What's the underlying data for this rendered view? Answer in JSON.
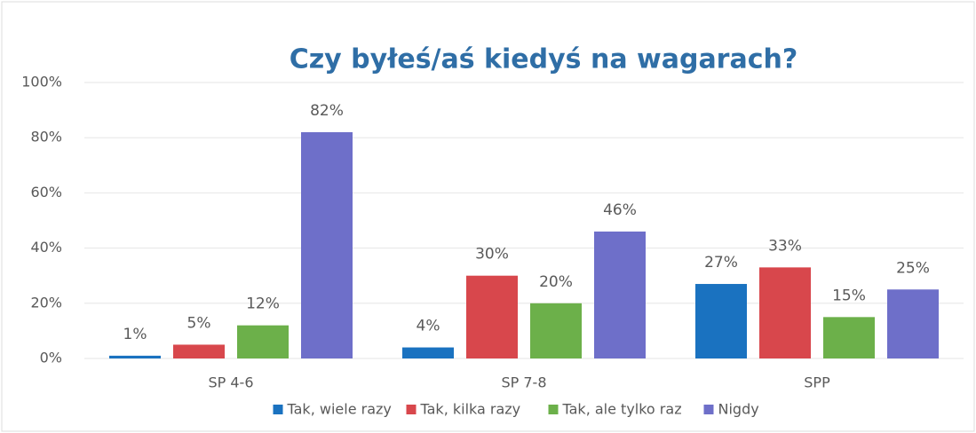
{
  "chart_data": {
    "type": "bar",
    "title": "Czy byłeś/aś kiedyś na wagarach?",
    "categories": [
      "SP 4-6",
      "SP 7-8",
      "SPP"
    ],
    "series": [
      {
        "name": "Tak, wiele razy",
        "color": "#1a72c0",
        "values": [
          1,
          4,
          27
        ],
        "value_labels": [
          "1%",
          "4%",
          "27%"
        ]
      },
      {
        "name": "Tak, kilka razy",
        "color": "#d8474c",
        "values": [
          5,
          30,
          33
        ],
        "value_labels": [
          "5%",
          "30%",
          "33%"
        ]
      },
      {
        "name": "Tak, ale tylko raz",
        "color": "#6cb04a",
        "values": [
          12,
          20,
          15
        ],
        "value_labels": [
          "12%",
          "20%",
          "15%"
        ]
      },
      {
        "name": "Nigdy",
        "color": "#6e6fc9",
        "values": [
          82,
          46,
          25
        ],
        "value_labels": [
          "82%",
          "46%",
          "25%"
        ]
      }
    ],
    "ylim": [
      0,
      100
    ],
    "yticks": [
      {
        "value": 0,
        "label": "0%"
      },
      {
        "value": 20,
        "label": "20%"
      },
      {
        "value": 40,
        "label": "40%"
      },
      {
        "value": 60,
        "label": "60%"
      },
      {
        "value": 80,
        "label": "80%"
      },
      {
        "value": 100,
        "label": "100%"
      }
    ],
    "grid": true,
    "legend": "bottom"
  }
}
